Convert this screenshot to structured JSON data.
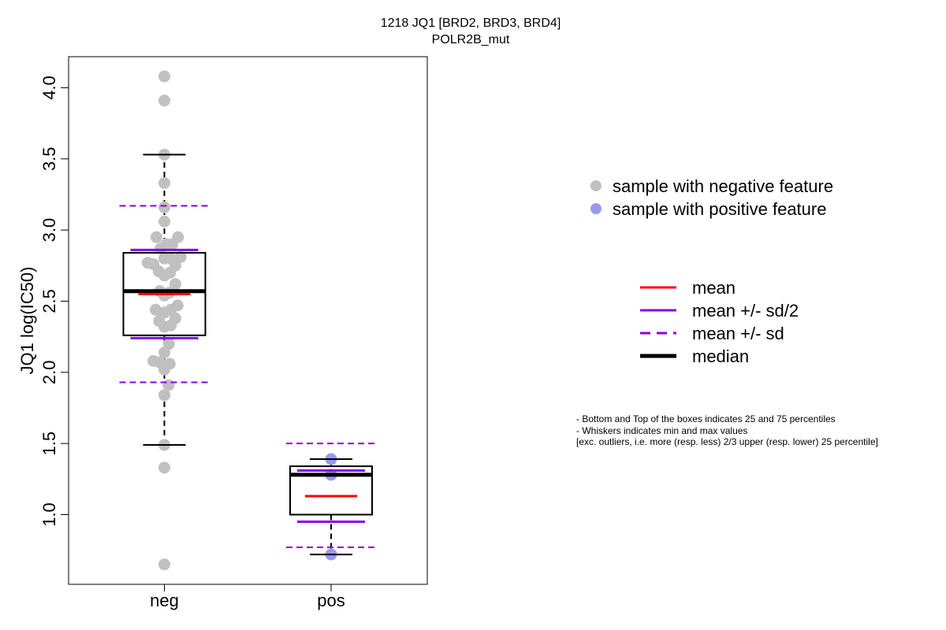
{
  "chart_data": {
    "type": "boxplot",
    "title": "1218 JQ1 [BRD2, BRD3, BRD4]",
    "subtitle": "POLR2B_mut",
    "ylabel": "JQ1 log(IC50)",
    "xlabel": "",
    "ylim": [
      0.6,
      4.2
    ],
    "yticks": [
      "1.0",
      "1.5",
      "2.0",
      "2.5",
      "3.0",
      "3.5",
      "4.0"
    ],
    "categories": [
      "neg",
      "pos"
    ],
    "groups": [
      {
        "category": "neg",
        "q1": 2.26,
        "median": 2.57,
        "q3": 2.84,
        "whisker_low": 1.49,
        "whisker_high": 3.53,
        "mean": 2.55,
        "mean_plus_half_sd": 2.86,
        "mean_minus_half_sd": 2.24,
        "mean_plus_sd": 3.17,
        "mean_minus_sd": 1.93,
        "points": [
          {
            "x": 0,
            "y": 4.08
          },
          {
            "x": 0,
            "y": 3.91
          },
          {
            "x": 0,
            "y": 3.53
          },
          {
            "x": 0,
            "y": 3.33
          },
          {
            "x": 0,
            "y": 3.16
          },
          {
            "x": 0,
            "y": 3.06
          },
          {
            "x": -0.21,
            "y": 2.95
          },
          {
            "x": -0.1,
            "y": 2.87
          },
          {
            "x": 0.05,
            "y": 2.9
          },
          {
            "x": 0.21,
            "y": 2.9
          },
          {
            "x": 0.36,
            "y": 2.95
          },
          {
            "x": 0.43,
            "y": 2.81
          },
          {
            "x": 0,
            "y": 2.8
          },
          {
            "x": 0.17,
            "y": 2.8
          },
          {
            "x": -0.44,
            "y": 2.77
          },
          {
            "x": -0.29,
            "y": 2.76
          },
          {
            "x": 0.29,
            "y": 2.75
          },
          {
            "x": -0.15,
            "y": 2.71
          },
          {
            "x": 0,
            "y": 2.68
          },
          {
            "x": 0.15,
            "y": 2.7
          },
          {
            "x": 0.29,
            "y": 2.62
          },
          {
            "x": -0.12,
            "y": 2.57
          },
          {
            "x": 0.14,
            "y": 2.56
          },
          {
            "x": 0,
            "y": 2.54
          },
          {
            "x": 0.35,
            "y": 2.47
          },
          {
            "x": -0.23,
            "y": 2.44
          },
          {
            "x": 0,
            "y": 2.42
          },
          {
            "x": 0.17,
            "y": 2.44
          },
          {
            "x": 0.29,
            "y": 2.38
          },
          {
            "x": -0.14,
            "y": 2.36
          },
          {
            "x": 0,
            "y": 2.32
          },
          {
            "x": 0.17,
            "y": 2.33
          },
          {
            "x": 0.12,
            "y": 2.2
          },
          {
            "x": 0,
            "y": 2.14
          },
          {
            "x": -0.29,
            "y": 2.08
          },
          {
            "x": -0.12,
            "y": 2.07
          },
          {
            "x": 0,
            "y": 2.02
          },
          {
            "x": 0.14,
            "y": 2.06
          },
          {
            "x": 0.11,
            "y": 1.91
          },
          {
            "x": 0,
            "y": 1.84
          },
          {
            "x": 0,
            "y": 1.49
          },
          {
            "x": 0,
            "y": 1.33
          },
          {
            "x": 0,
            "y": 0.65
          }
        ]
      },
      {
        "category": "pos",
        "q1": 1.0,
        "median": 1.28,
        "q3": 1.34,
        "whisker_low": 0.72,
        "whisker_high": 1.39,
        "mean": 1.13,
        "mean_plus_half_sd": 1.31,
        "mean_minus_half_sd": 0.95,
        "mean_plus_sd": 1.5,
        "mean_minus_sd": 0.77,
        "points": [
          {
            "x": 0,
            "y": 1.39
          },
          {
            "x": 0,
            "y": 1.28
          },
          {
            "x": 0,
            "y": 0.72
          }
        ]
      }
    ],
    "legend_points": [
      {
        "label": "sample with negative feature",
        "color": "#c0c0c0"
      },
      {
        "label": "sample with positive feature",
        "color": "#9999ee"
      }
    ],
    "legend_lines": [
      {
        "label": "mean",
        "color": "#ff0000",
        "style": "solid"
      },
      {
        "label": "mean +/- sd/2",
        "color": "#8a00e6",
        "style": "solid"
      },
      {
        "label": "mean +/- sd",
        "color": "#8a00e6",
        "style": "dashed"
      },
      {
        "label": "median",
        "color": "#000000",
        "style": "solid-thick"
      }
    ],
    "notes": [
      "- Bottom and Top of the boxes indicates 25 and 75 percentiles",
      "- Whiskers indicates min and max values",
      "[exc. outliers, i.e. more (resp. less) 2/3 upper (resp. lower) 25 percentile]"
    ],
    "colors": {
      "neg_points": "#c0c0c0",
      "pos_points": "#9999ee",
      "mean": "#ff0000",
      "sd": "#8a00e6",
      "median": "#000000"
    },
    "grid": false,
    "legend_position": "right"
  }
}
